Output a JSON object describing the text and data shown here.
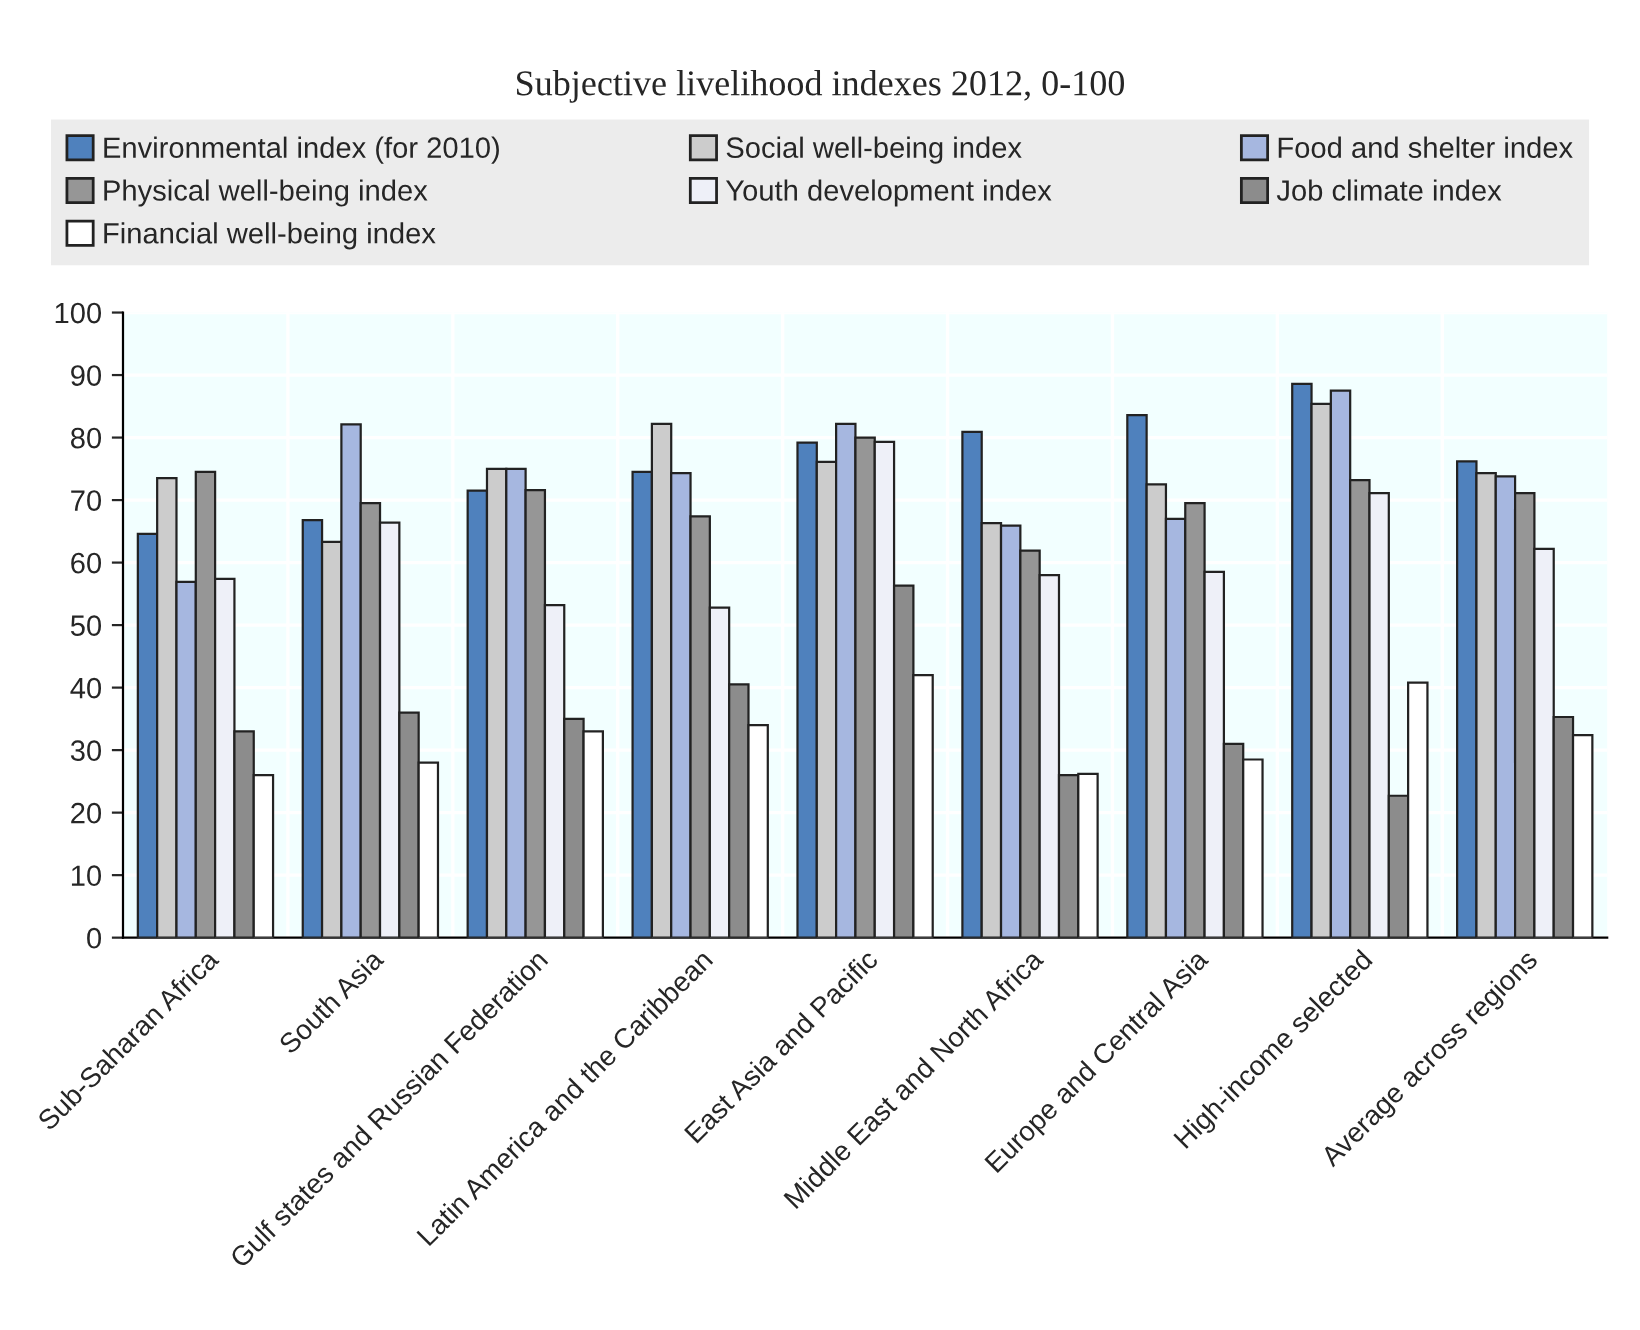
{
  "chart_data": {
    "type": "bar",
    "title": "Subjective livelihood indexes 2012, 0-100",
    "categories": [
      "Sub-Saharan Africa",
      "South Asia",
      "Gulf states and Russian Federation",
      "Latin America and the Caribbean",
      "East Asia and Pacific",
      "Middle East and North Africa",
      "Europe and Central Asia",
      "High-income selected",
      "Average across regions"
    ],
    "series": [
      {
        "name": "Environmental index (for 2010)",
        "color": "#4f81bd",
        "values": [
          64.6,
          66.8,
          71.5,
          74.5,
          79.2,
          80.9,
          83.6,
          88.6,
          76.2
        ]
      },
      {
        "name": "Social well-being index",
        "color": "#cccccc",
        "values": [
          73.5,
          63.3,
          75.0,
          82.2,
          76.1,
          66.3,
          72.5,
          85.4,
          74.3
        ]
      },
      {
        "name": "Food and shelter index",
        "color": "#a6b7e0",
        "values": [
          56.9,
          82.1,
          75.0,
          74.3,
          82.2,
          65.9,
          67.0,
          87.5,
          73.8
        ]
      },
      {
        "name": "Physical well-being index",
        "color": "#969696",
        "values": [
          74.5,
          69.5,
          71.6,
          67.4,
          80.0,
          61.9,
          69.5,
          73.2,
          71.1
        ]
      },
      {
        "name": "Youth development index",
        "color": "#eef0f8",
        "values": [
          57.4,
          66.4,
          53.2,
          52.8,
          79.3,
          58.0,
          58.5,
          71.1,
          62.2
        ]
      },
      {
        "name": "Job climate index",
        "color": "#8c8c8c",
        "values": [
          33.0,
          36.0,
          35.0,
          40.5,
          56.3,
          26.0,
          31.0,
          22.7,
          35.3
        ]
      },
      {
        "name": "Financial well-being index",
        "color": "#ffffff",
        "values": [
          26.0,
          28.0,
          33.0,
          34.0,
          42.0,
          26.2,
          28.5,
          40.8,
          32.4
        ]
      }
    ],
    "ylim": [
      0,
      100
    ],
    "yticks": [
      0,
      10,
      20,
      30,
      40,
      50,
      60,
      70,
      80,
      90,
      100
    ],
    "grid": true,
    "legend": "top"
  }
}
